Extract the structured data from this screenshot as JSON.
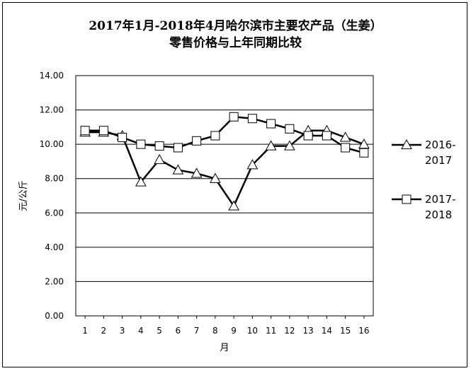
{
  "chart_data": {
    "type": "line",
    "title_line1": "2017年1月-2018年4月哈尔滨市主要农产品（生姜）",
    "title_line2": "零售价格与上年同期比较",
    "xlabel": "月",
    "ylabel": "元/公斤",
    "ylim": [
      0,
      14
    ],
    "y_ticks": [
      "0.00",
      "2.00",
      "4.00",
      "6.00",
      "8.00",
      "10.00",
      "12.00",
      "14.00"
    ],
    "categories": [
      "1",
      "2",
      "3",
      "4",
      "5",
      "6",
      "7",
      "8",
      "9",
      "10",
      "11",
      "12",
      "13",
      "14",
      "15",
      "16"
    ],
    "grid": true,
    "legend_position": "right",
    "series": [
      {
        "name_line1": "2016-",
        "name_line2": "2017",
        "marker": "triangle",
        "values": [
          10.7,
          10.7,
          10.5,
          7.8,
          9.1,
          8.5,
          8.3,
          8.0,
          6.4,
          8.8,
          9.9,
          9.9,
          10.8,
          10.8,
          10.4,
          10.0
        ]
      },
      {
        "name_line1": "2017-",
        "name_line2": "2018",
        "marker": "square",
        "values": [
          10.8,
          10.8,
          10.4,
          10.0,
          9.9,
          9.8,
          10.2,
          10.5,
          11.6,
          11.5,
          11.2,
          10.9,
          10.5,
          10.5,
          9.8,
          9.5
        ]
      }
    ]
  }
}
